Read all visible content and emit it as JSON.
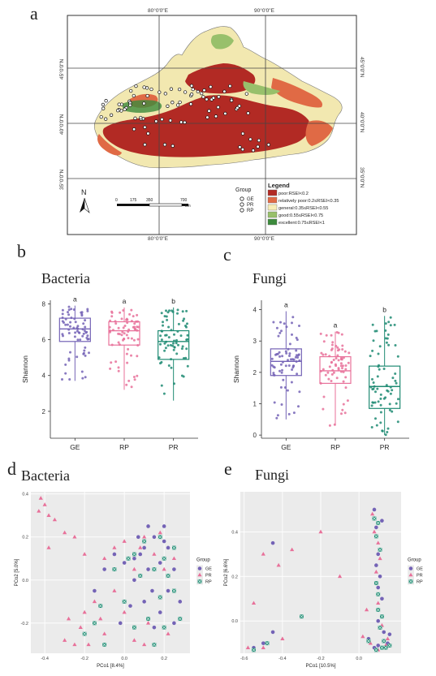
{
  "panels": {
    "a": {
      "letter": "a"
    },
    "b": {
      "letter": "b",
      "title": "Bacteria"
    },
    "c": {
      "letter": "c",
      "title": "Fungi"
    },
    "d": {
      "letter": "d",
      "title": "Bacteria"
    },
    "e": {
      "letter": "e",
      "title": "Fungi"
    }
  },
  "map": {
    "lon_labels": [
      "80°0'0\"E",
      "90°0'0\"E"
    ],
    "lat_labels": [
      "45°0'0\"N",
      "40°0'0\"N",
      "35°0'0\"N"
    ],
    "north": "N",
    "scale": {
      "ticks": [
        "0",
        "175",
        "350",
        "700"
      ],
      "unit": "km"
    },
    "group_title": "Group",
    "groups": [
      "GE",
      "PR",
      "RP"
    ],
    "legend_title": "Legend",
    "legend_items": [
      {
        "label": "poor:RSEI<0.2",
        "color": "#b22a24"
      },
      {
        "label": "relatively poor:0.2≤RSEI<0.35",
        "color": "#e06a45"
      },
      {
        "label": "general:0.35≤RSEI<0.55",
        "color": "#f7edb7"
      },
      {
        "label": "good:0.55≤RSEI<0.75",
        "color": "#98c06b"
      },
      {
        "label": "excellent:0.75≤RSEI<1",
        "color": "#3c8a3c"
      }
    ]
  },
  "colors": {
    "GE": "#7463b6",
    "RP": "#e8719a",
    "PR": "#1f8b73"
  },
  "chart_data": [
    {
      "type": "box",
      "title": "Bacteria",
      "ylabel": "Shannon",
      "categories": [
        "GE",
        "RP",
        "PR"
      ],
      "ylim": [
        0.5,
        8.2
      ],
      "yticks": [
        2,
        4,
        6,
        8
      ],
      "letters": [
        "a",
        "a",
        "b"
      ],
      "boxes": [
        {
          "min": 3.7,
          "q1": 5.9,
          "median": 6.6,
          "q3": 7.2,
          "max": 7.9
        },
        {
          "min": 3.2,
          "q1": 5.7,
          "median": 6.5,
          "q3": 7.0,
          "max": 7.8
        },
        {
          "min": 2.6,
          "q1": 4.9,
          "median": 5.9,
          "q3": 6.5,
          "max": 7.8
        }
      ]
    },
    {
      "type": "box",
      "title": "Fungi",
      "ylabel": "Shannon",
      "categories": [
        "GE",
        "RP",
        "PR"
      ],
      "ylim": [
        -0.1,
        4.3
      ],
      "yticks": [
        0,
        1,
        2,
        3,
        4
      ],
      "letters": [
        "a",
        "a",
        "b"
      ],
      "boxes": [
        {
          "min": 0.5,
          "q1": 1.9,
          "median": 2.35,
          "q3": 2.75,
          "max": 3.95
        },
        {
          "min": 0.3,
          "q1": 1.65,
          "median": 2.05,
          "q3": 2.5,
          "max": 3.3
        },
        {
          "min": 0.0,
          "q1": 0.85,
          "median": 1.55,
          "q3": 2.2,
          "max": 3.8
        }
      ]
    },
    {
      "type": "scatter",
      "title": "Bacteria",
      "xlabel": "PCo1 [8.4%]",
      "ylabel": "PCo2 [5.0%]",
      "xlim": [
        -0.47,
        0.33
      ],
      "ylim": [
        -0.34,
        0.41
      ],
      "xticks": [
        -0.4,
        -0.2,
        0.0,
        0.2
      ],
      "yticks": [
        -0.2,
        0.0,
        0.2,
        0.4
      ],
      "legend_title": "Group",
      "legend": [
        "GE",
        "PR",
        "RP"
      ],
      "series": [
        {
          "name": "GE",
          "points": [
            [
              0.05,
              0.1
            ],
            [
              0.1,
              0.15
            ],
            [
              0.15,
              0.2
            ],
            [
              0.2,
              0.18
            ],
            [
              0.12,
              0.05
            ],
            [
              0.08,
              0.12
            ],
            [
              0.25,
              0.05
            ],
            [
              0.22,
              -0.05
            ],
            [
              0.18,
              -0.15
            ],
            [
              0.15,
              -0.22
            ],
            [
              0.1,
              -0.1
            ],
            [
              0.05,
              0.0
            ],
            [
              0.0,
              0.08
            ],
            [
              -0.05,
              0.12
            ],
            [
              0.03,
              -0.12
            ],
            [
              0.2,
              0.25
            ],
            [
              0.12,
              0.25
            ],
            [
              0.28,
              -0.1
            ],
            [
              0.25,
              -0.2
            ],
            [
              0.07,
              0.2
            ],
            [
              -0.1,
              0.05
            ],
            [
              -0.15,
              -0.05
            ],
            [
              0.18,
              0.08
            ],
            [
              0.22,
              0.15
            ],
            [
              0.14,
              -0.05
            ],
            [
              -0.02,
              -0.2
            ]
          ]
        },
        {
          "name": "PR",
          "points": [
            [
              -0.42,
              0.38
            ],
            [
              -0.4,
              0.35
            ],
            [
              -0.38,
              0.3
            ],
            [
              -0.43,
              0.32
            ],
            [
              -0.35,
              0.28
            ],
            [
              -0.3,
              0.22
            ],
            [
              -0.25,
              0.2
            ],
            [
              -0.38,
              0.15
            ],
            [
              -0.2,
              0.12
            ],
            [
              -0.1,
              0.1
            ],
            [
              -0.05,
              0.15
            ],
            [
              0.0,
              0.18
            ],
            [
              0.1,
              0.2
            ],
            [
              0.15,
              0.12
            ],
            [
              0.2,
              0.05
            ],
            [
              0.05,
              0.05
            ],
            [
              -0.15,
              -0.1
            ],
            [
              -0.2,
              -0.15
            ],
            [
              -0.22,
              -0.22
            ],
            [
              -0.25,
              -0.3
            ],
            [
              -0.1,
              -0.25
            ],
            [
              0.0,
              -0.15
            ],
            [
              0.05,
              -0.28
            ],
            [
              0.1,
              -0.3
            ],
            [
              -0.3,
              -0.28
            ],
            [
              -0.18,
              -0.3
            ],
            [
              0.12,
              -0.2
            ],
            [
              0.22,
              -0.25
            ],
            [
              0.25,
              0.1
            ],
            [
              -0.05,
              -0.05
            ],
            [
              -0.12,
              -0.18
            ],
            [
              -0.28,
              -0.18
            ],
            [
              0.18,
              0.22
            ],
            [
              0.08,
              0.15
            ]
          ]
        },
        {
          "name": "RP",
          "points": [
            [
              0.1,
              0.18
            ],
            [
              0.15,
              0.05
            ],
            [
              0.2,
              0.1
            ],
            [
              0.05,
              0.12
            ],
            [
              0.25,
              0.15
            ],
            [
              0.22,
              0.02
            ],
            [
              0.18,
              -0.08
            ],
            [
              0.12,
              -0.18
            ],
            [
              0.2,
              -0.22
            ],
            [
              0.25,
              -0.05
            ],
            [
              0.0,
              -0.1
            ],
            [
              -0.05,
              0.05
            ],
            [
              -0.15,
              -0.2
            ],
            [
              -0.2,
              -0.25
            ],
            [
              -0.1,
              -0.3
            ],
            [
              0.05,
              -0.22
            ],
            [
              0.15,
              -0.3
            ],
            [
              0.28,
              -0.18
            ],
            [
              0.08,
              0.02
            ],
            [
              -0.12,
              -0.12
            ],
            [
              0.02,
              0.1
            ],
            [
              0.18,
              0.2
            ]
          ]
        }
      ]
    },
    {
      "type": "scatter",
      "title": "Fungi",
      "xlabel": "PCo1 [10.5%]",
      "ylabel": "PCo2 [6.6%]",
      "xlim": [
        -0.62,
        0.22
      ],
      "ylim": [
        -0.145,
        0.58
      ],
      "xticks": [
        -0.6,
        -0.4,
        -0.2,
        0.0
      ],
      "yticks": [
        0.0,
        0.2,
        0.4
      ],
      "legend_title": "Group",
      "legend": [
        "GE",
        "PR",
        "RP"
      ],
      "series": [
        {
          "name": "GE",
          "points": [
            [
              0.08,
              0.5
            ],
            [
              0.09,
              0.42
            ],
            [
              0.1,
              0.3
            ],
            [
              0.11,
              0.2
            ],
            [
              0.12,
              0.1
            ],
            [
              0.1,
              0.0
            ],
            [
              0.13,
              -0.05
            ],
            [
              0.15,
              -0.1
            ],
            [
              0.08,
              -0.12
            ],
            [
              0.05,
              -0.08
            ],
            [
              0.1,
              -0.11
            ],
            [
              0.14,
              -0.12
            ],
            [
              0.12,
              0.45
            ],
            [
              0.1,
              0.15
            ],
            [
              -0.55,
              -0.12
            ],
            [
              -0.5,
              -0.1
            ],
            [
              -0.45,
              -0.05
            ],
            [
              -0.45,
              0.35
            ],
            [
              0.09,
              0.25
            ],
            [
              0.16,
              -0.06
            ]
          ]
        },
        {
          "name": "PR",
          "points": [
            [
              0.07,
              0.48
            ],
            [
              0.08,
              0.4
            ],
            [
              0.1,
              0.35
            ],
            [
              0.09,
              0.22
            ],
            [
              0.1,
              0.08
            ],
            [
              0.12,
              -0.02
            ],
            [
              0.14,
              -0.11
            ],
            [
              0.06,
              -0.1
            ],
            [
              0.1,
              -0.13
            ],
            [
              0.15,
              -0.08
            ],
            [
              -0.2,
              0.4
            ],
            [
              -0.1,
              0.2
            ],
            [
              -0.5,
              0.3
            ],
            [
              -0.42,
              0.25
            ],
            [
              -0.35,
              0.32
            ],
            [
              -0.55,
              0.08
            ],
            [
              -0.5,
              -0.12
            ],
            [
              -0.58,
              -0.12
            ],
            [
              -0.4,
              -0.08
            ],
            [
              0.04,
              0.05
            ],
            [
              0.02,
              -0.07
            ],
            [
              0.11,
              0.28
            ]
          ]
        },
        {
          "name": "RP",
          "points": [
            [
              0.08,
              0.46
            ],
            [
              0.1,
              0.44
            ],
            [
              0.09,
              0.38
            ],
            [
              0.11,
              0.32
            ],
            [
              0.1,
              0.12
            ],
            [
              0.12,
              0.02
            ],
            [
              0.13,
              -0.09
            ],
            [
              0.16,
              -0.11
            ],
            [
              0.09,
              -0.13
            ],
            [
              0.12,
              -0.12
            ],
            [
              -0.3,
              0.02
            ],
            [
              -0.55,
              -0.13
            ],
            [
              -0.48,
              -0.1
            ],
            [
              0.05,
              -0.09
            ],
            [
              0.1,
              0.05
            ],
            [
              0.11,
              -0.03
            ],
            [
              0.14,
              -0.12
            ],
            [
              0.09,
              0.17
            ]
          ]
        }
      ]
    }
  ]
}
